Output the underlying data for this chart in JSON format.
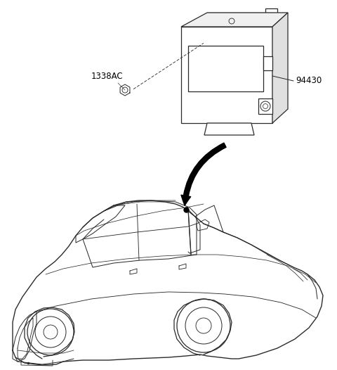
{
  "bg_color": "#ffffff",
  "line_color": "#2a2a2a",
  "figsize": [
    4.8,
    5.26
  ],
  "dpi": 100,
  "label_1338AC": "1338AC",
  "label_94430": "94430",
  "label_font_size": 8.5
}
